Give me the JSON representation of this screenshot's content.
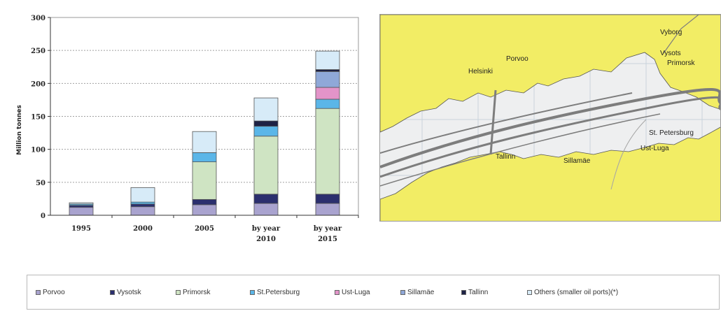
{
  "chart_data": {
    "type": "bar",
    "stacked": true,
    "categories": [
      "1995",
      "2000",
      "2005",
      "by year 2010",
      "by year 2015"
    ],
    "ylabel": "Million tonnes",
    "ylim": [
      0,
      300
    ],
    "yticks": [
      0,
      50,
      100,
      150,
      200,
      250,
      300
    ],
    "grid": true,
    "series": [
      {
        "name": "Porvoo",
        "color": "#a9a3cf",
        "values": [
          12,
          13,
          16,
          18,
          18
        ]
      },
      {
        "name": "Vysotsk",
        "color": "#2b2f6e",
        "values": [
          3,
          4,
          8,
          14,
          14
        ]
      },
      {
        "name": "Primorsk",
        "color": "#cfe4c3",
        "values": [
          0,
          0,
          57,
          88,
          130
        ]
      },
      {
        "name": "St.Petersburg",
        "color": "#5bb6e8",
        "values": [
          2,
          3,
          14,
          15,
          14
        ]
      },
      {
        "name": "Ust-Luga",
        "color": "#e394c9",
        "values": [
          0,
          0,
          0,
          0,
          18
        ]
      },
      {
        "name": "Sillamäe",
        "color": "#8fa8d8",
        "values": [
          0,
          0,
          0,
          0,
          24
        ]
      },
      {
        "name": "Tallinn",
        "color": "#1e2245",
        "values": [
          0,
          0,
          0,
          8,
          3
        ]
      },
      {
        "name": "Others (smaller oil ports)(*)",
        "color": "#d7ebf8",
        "values": [
          2,
          22,
          32,
          35,
          28
        ]
      }
    ]
  },
  "legend": [
    "Porvoo",
    "Vysotsk",
    "Primorsk",
    "St.Petersburg",
    "Ust-Luga",
    "Sillamäe",
    "Tallinn",
    "Others (smaller oil ports)(*)"
  ],
  "map": {
    "labels": {
      "vyborg": "Vyborg",
      "vysotsk": "Vysots",
      "primorsk": "Primorsk",
      "porvoo": "Porvoo",
      "helsinki": "Helsinki",
      "st_petersburg": "St. Petersburg",
      "ust_luga": "Ust-Luga",
      "tallinn": "Tallinn",
      "sillamae": "Sillamäe"
    }
  }
}
